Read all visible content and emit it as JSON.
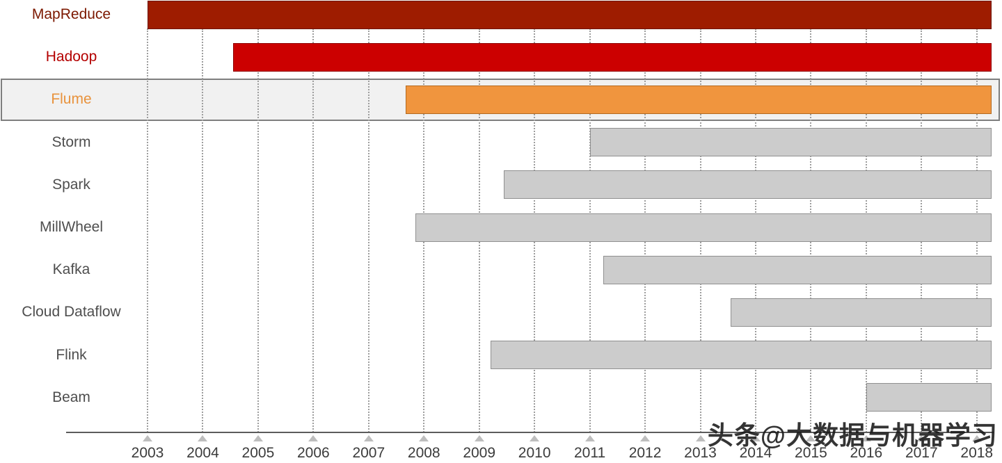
{
  "watermark": "头条@大数据与机器学习",
  "chart_data": {
    "type": "bar",
    "variant": "gantt-timeline",
    "title": "",
    "xlabel": "",
    "ylabel": "",
    "x_range": [
      2001.6,
      2018.3
    ],
    "x_ticks": [
      "2003",
      "2004",
      "2005",
      "2006",
      "2007",
      "2008",
      "2009",
      "2010",
      "2011",
      "2012",
      "2013",
      "2014",
      "2015",
      "2016",
      "2017",
      "2018"
    ],
    "grid": "vertical-dotted",
    "legend": "none",
    "bar_end_year": 2018.3,
    "rows": [
      {
        "label": "MapReduce",
        "start": 2003.0,
        "end": 2018.3,
        "bar_color": "#9e1c00",
        "bar_border": "#6e1300",
        "label_color": "#7c1800",
        "highlighted": false
      },
      {
        "label": "Hadoop",
        "start": 2004.55,
        "end": 2018.3,
        "bar_color": "#cc0000",
        "bar_border": "#8e0000",
        "label_color": "#b40000",
        "highlighted": false
      },
      {
        "label": "Flume",
        "start": 2007.67,
        "end": 2018.3,
        "bar_color": "#f0953e",
        "bar_border": "#b36a20",
        "label_color": "#e8923c",
        "highlighted": true
      },
      {
        "label": "Storm",
        "start": 2011.0,
        "end": 2018.3,
        "bar_color": "#cccccc",
        "bar_border": "#909090",
        "label_color": "#4e4e4e",
        "highlighted": false
      },
      {
        "label": "Spark",
        "start": 2009.45,
        "end": 2018.3,
        "bar_color": "#cccccc",
        "bar_border": "#909090",
        "label_color": "#4e4e4e",
        "highlighted": false
      },
      {
        "label": "MillWheel",
        "start": 2007.85,
        "end": 2018.3,
        "bar_color": "#cccccc",
        "bar_border": "#909090",
        "label_color": "#4e4e4e",
        "highlighted": false
      },
      {
        "label": "Kafka",
        "start": 2011.25,
        "end": 2018.3,
        "bar_color": "#cccccc",
        "bar_border": "#909090",
        "label_color": "#4e4e4e",
        "highlighted": false
      },
      {
        "label": "Cloud Dataflow",
        "start": 2013.55,
        "end": 2018.3,
        "bar_color": "#cccccc",
        "bar_border": "#909090",
        "label_color": "#4e4e4e",
        "highlighted": false
      },
      {
        "label": "Flink",
        "start": 2009.2,
        "end": 2018.3,
        "bar_color": "#cccccc",
        "bar_border": "#909090",
        "label_color": "#4e4e4e",
        "highlighted": false
      },
      {
        "label": "Beam",
        "start": 2016.0,
        "end": 2018.3,
        "bar_color": "#cccccc",
        "bar_border": "#909090",
        "label_color": "#4e4e4e",
        "highlighted": false
      }
    ]
  }
}
